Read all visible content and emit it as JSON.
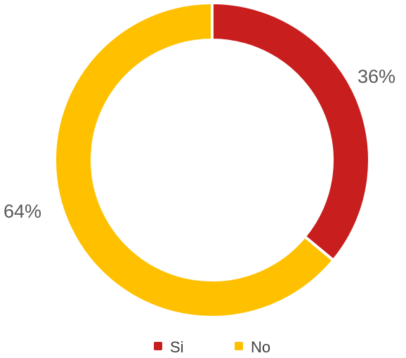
{
  "chart_data": {
    "type": "pie",
    "variant": "donut",
    "categories": [
      "Si",
      "No"
    ],
    "values": [
      36,
      64
    ],
    "data_labels": [
      "36%",
      "64%"
    ],
    "colors": [
      "#C81E1E",
      "#FFC000"
    ],
    "legend": {
      "placement": "bottom",
      "entries": [
        "Si",
        "No"
      ]
    }
  }
}
